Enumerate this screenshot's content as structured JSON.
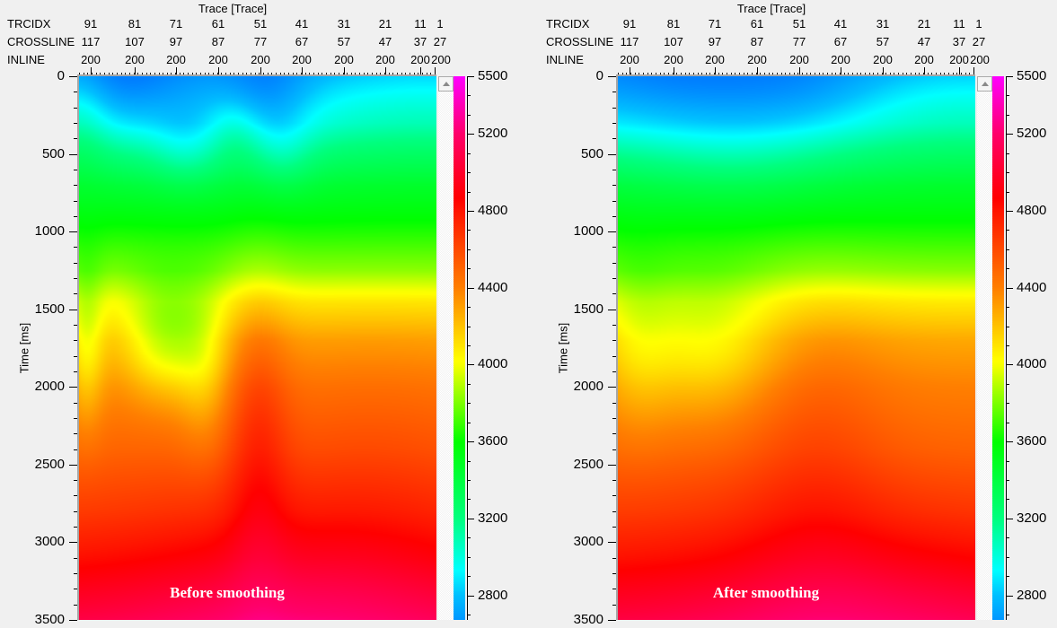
{
  "window": {
    "background": "#f0f0f0"
  },
  "panels": [
    {
      "title": "Trace [Trace]",
      "annotation": "Before smoothing",
      "header_rows": [
        {
          "label": "TRCIDX",
          "values": [
            "91",
            "81",
            "71",
            "61",
            "51",
            "41",
            "31",
            "21",
            "11",
            "1"
          ]
        },
        {
          "label": "CROSSLINE",
          "values": [
            "117",
            "107",
            "97",
            "87",
            "77",
            "67",
            "57",
            "47",
            "37",
            "27"
          ]
        },
        {
          "label": "INLINE",
          "values": [
            "200",
            "200",
            "200",
            "200",
            "200",
            "200",
            "200",
            "200",
            "200",
            "200"
          ]
        }
      ]
    },
    {
      "title": "Trace [Trace]",
      "annotation": "After smoothing",
      "header_rows": [
        {
          "label": "TRCIDX",
          "values": [
            "91",
            "81",
            "71",
            "61",
            "51",
            "41",
            "31",
            "21",
            "11",
            "1"
          ]
        },
        {
          "label": "CROSSLINE",
          "values": [
            "117",
            "107",
            "97",
            "87",
            "77",
            "67",
            "57",
            "47",
            "37",
            "27"
          ]
        },
        {
          "label": "INLINE",
          "values": [
            "200",
            "200",
            "200",
            "200",
            "200",
            "200",
            "200",
            "200",
            "200",
            "200"
          ]
        }
      ]
    }
  ],
  "time_axis": {
    "label": "Time [ms]",
    "major_tick_labels": [
      "0",
      "500",
      "1000",
      "1500",
      "2000",
      "2500",
      "3000",
      "3500"
    ],
    "major_step_ms": 500,
    "minor_step_ms": 100,
    "range_ms": [
      0,
      3500
    ]
  },
  "colorbar_axis": {
    "labeled_ticks": [
      "5500",
      "5200",
      "4800",
      "4400",
      "4000",
      "3600",
      "3200",
      "2800"
    ],
    "minor_step": 100,
    "top_value": 5500,
    "visible_bottom_value": 2670
  },
  "chart_data": [
    {
      "type": "heatmap",
      "title": "Trace [Trace]",
      "annotation": "Before smoothing",
      "x_axis": {
        "trcidx": [
          91,
          81,
          71,
          61,
          51,
          41,
          31,
          21,
          11,
          1
        ],
        "crossline": [
          117,
          107,
          97,
          87,
          77,
          67,
          57,
          47,
          37,
          27
        ],
        "inline": [
          200,
          200,
          200,
          200,
          200,
          200,
          200,
          200,
          200,
          200
        ]
      },
      "y_axis": {
        "label": "Time [ms]",
        "range_ms": [
          0,
          3500
        ],
        "major_tick_step": 500,
        "minor_tick_step": 100
      },
      "color_axis": {
        "quantity": "velocity",
        "visible_range": [
          2670,
          5500
        ],
        "labeled_ticks": [
          5500,
          5200,
          4800,
          4400,
          4000,
          3600,
          3200,
          2800
        ]
      },
      "colormap_hue_stops": [
        [
          2600,
          210
        ],
        [
          2800,
          195
        ],
        [
          3200,
          150
        ],
        [
          3600,
          120
        ],
        [
          4000,
          62
        ],
        [
          4400,
          30
        ],
        [
          4800,
          5
        ],
        [
          5200,
          -25
        ],
        [
          5500,
          -60
        ]
      ],
      "velocity_time_profile": [
        [
          0,
          2720
        ],
        [
          300,
          2950
        ],
        [
          500,
          3200
        ],
        [
          700,
          3420
        ],
        [
          1000,
          3640
        ],
        [
          1250,
          3820
        ],
        [
          1450,
          4080
        ],
        [
          1700,
          4280
        ],
        [
          2000,
          4400
        ],
        [
          2400,
          4500
        ],
        [
          2800,
          4650
        ],
        [
          3100,
          4800
        ],
        [
          3400,
          4990
        ],
        [
          3500,
          5060
        ]
      ],
      "lateral_anomalies": [
        {
          "x": 0.12,
          "t": 60,
          "sx": 0.13,
          "st": 200,
          "dv": -150
        },
        {
          "x": 0.52,
          "t": 90,
          "sx": 0.09,
          "st": 180,
          "dv": -160
        },
        {
          "x": 0.0,
          "t": 250,
          "sx": 0.06,
          "st": 250,
          "dv": 170
        },
        {
          "x": 0.3,
          "t": 450,
          "sx": 0.07,
          "st": 190,
          "dv": -150
        },
        {
          "x": 0.57,
          "t": 470,
          "sx": 0.06,
          "st": 190,
          "dv": -140
        },
        {
          "x": 0.43,
          "t": 330,
          "sx": 0.05,
          "st": 150,
          "dv": 90
        },
        {
          "x": 0.97,
          "t": 150,
          "sx": 0.28,
          "st": 350,
          "dv": 150
        },
        {
          "x": 0.25,
          "t": 1700,
          "sx": 0.09,
          "st": 270,
          "dv": -380
        },
        {
          "x": 0.02,
          "t": 1750,
          "sx": 0.035,
          "st": 350,
          "dv": -260
        },
        {
          "x": 0.35,
          "t": 1950,
          "sx": 0.05,
          "st": 350,
          "dv": -160
        },
        {
          "x": 0.5,
          "t": 2300,
          "sx": 0.06,
          "st": 650,
          "dv": 210
        },
        {
          "x": 0.82,
          "t": 2500,
          "sx": 0.25,
          "st": 600,
          "dv": 90
        },
        {
          "x": 0.6,
          "t": 3400,
          "sx": 0.33,
          "st": 500,
          "dv": 150
        }
      ]
    },
    {
      "type": "heatmap",
      "title": "Trace [Trace]",
      "annotation": "After smoothing",
      "x_axis": {
        "trcidx": [
          91,
          81,
          71,
          61,
          51,
          41,
          31,
          21,
          11,
          1
        ],
        "crossline": [
          117,
          107,
          97,
          87,
          77,
          67,
          57,
          47,
          37,
          27
        ],
        "inline": [
          200,
          200,
          200,
          200,
          200,
          200,
          200,
          200,
          200,
          200
        ]
      },
      "y_axis": {
        "label": "Time [ms]",
        "range_ms": [
          0,
          3500
        ],
        "major_tick_step": 500,
        "minor_tick_step": 100
      },
      "color_axis": {
        "quantity": "velocity",
        "visible_range": [
          2670,
          5500
        ],
        "labeled_ticks": [
          5500,
          5200,
          4800,
          4400,
          4000,
          3600,
          3200,
          2800
        ]
      },
      "colormap_hue_stops": [
        [
          2600,
          210
        ],
        [
          2800,
          195
        ],
        [
          3200,
          150
        ],
        [
          3600,
          120
        ],
        [
          4000,
          62
        ],
        [
          4400,
          30
        ],
        [
          4800,
          5
        ],
        [
          5200,
          -25
        ],
        [
          5500,
          -60
        ]
      ],
      "velocity_time_profile": [
        [
          0,
          2720
        ],
        [
          300,
          2950
        ],
        [
          500,
          3200
        ],
        [
          700,
          3420
        ],
        [
          1000,
          3640
        ],
        [
          1250,
          3820
        ],
        [
          1450,
          4080
        ],
        [
          1700,
          4280
        ],
        [
          2000,
          4400
        ],
        [
          2400,
          4500
        ],
        [
          2800,
          4650
        ],
        [
          3100,
          4800
        ],
        [
          3400,
          4990
        ],
        [
          3500,
          5060
        ]
      ],
      "lateral_anomalies": [
        {
          "x": 0.2,
          "t": 60,
          "sx": 0.25,
          "st": 180,
          "dv": -120
        },
        {
          "x": 0.55,
          "t": 100,
          "sx": 0.15,
          "st": 180,
          "dv": -80
        },
        {
          "x": 0.33,
          "t": 470,
          "sx": 0.2,
          "st": 240,
          "dv": -110
        },
        {
          "x": 0.97,
          "t": 150,
          "sx": 0.28,
          "st": 350,
          "dv": 140
        },
        {
          "x": 0.25,
          "t": 1750,
          "sx": 0.14,
          "st": 330,
          "dv": -260
        },
        {
          "x": 0.05,
          "t": 1750,
          "sx": 0.07,
          "st": 400,
          "dv": -150
        },
        {
          "x": 0.55,
          "t": 2400,
          "sx": 0.14,
          "st": 700,
          "dv": 120
        },
        {
          "x": 0.65,
          "t": 3400,
          "sx": 0.33,
          "st": 500,
          "dv": 130
        }
      ]
    }
  ]
}
